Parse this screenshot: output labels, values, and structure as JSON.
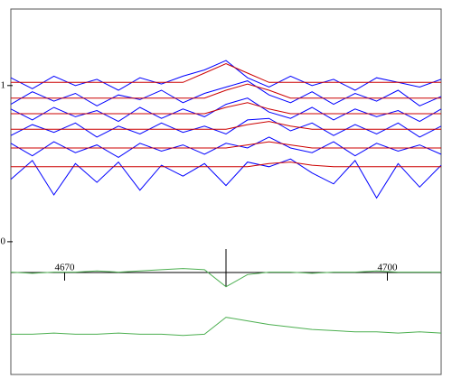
{
  "chart_data": [
    {
      "type": "line",
      "x": [
        4665,
        4667,
        4669,
        4671,
        4673,
        4675,
        4677,
        4679,
        4681,
        4683,
        4685,
        4687,
        4689,
        4691,
        4693,
        4695,
        4697,
        4699,
        4701,
        4703,
        4705
      ],
      "xlim": [
        4665,
        4705
      ],
      "ylim": [
        -0.07,
        1.49
      ],
      "yticks": [
        0,
        1
      ],
      "series": [
        {
          "color": "#0000ff",
          "values": [
            1.05,
            0.98,
            1.06,
            1.0,
            1.04,
            0.97,
            1.05,
            1.01,
            1.06,
            1.1,
            1.16,
            1.05,
            0.99,
            1.06,
            1.0,
            1.04,
            0.97,
            1.05,
            1.02,
            0.99,
            1.04
          ]
        },
        {
          "color": "#cc0000",
          "values": [
            1.02,
            1.02,
            1.02,
            1.02,
            1.02,
            1.02,
            1.02,
            1.02,
            1.02,
            1.08,
            1.14,
            1.08,
            1.02,
            1.02,
            1.02,
            1.02,
            1.02,
            1.02,
            1.02,
            1.02,
            1.02
          ]
        },
        {
          "color": "#0000ff",
          "values": [
            0.88,
            0.96,
            0.9,
            0.95,
            0.87,
            0.94,
            0.91,
            0.97,
            0.89,
            0.95,
            0.99,
            1.03,
            0.94,
            0.89,
            0.96,
            0.88,
            0.95,
            0.9,
            0.97,
            0.87,
            0.93
          ]
        },
        {
          "color": "#cc0000",
          "values": [
            0.92,
            0.92,
            0.92,
            0.92,
            0.92,
            0.92,
            0.92,
            0.92,
            0.92,
            0.92,
            0.97,
            1.01,
            0.97,
            0.92,
            0.92,
            0.92,
            0.92,
            0.92,
            0.92,
            0.92,
            0.92
          ]
        },
        {
          "color": "#0000ff",
          "values": [
            0.85,
            0.78,
            0.86,
            0.8,
            0.84,
            0.77,
            0.86,
            0.79,
            0.85,
            0.8,
            0.88,
            0.92,
            0.83,
            0.79,
            0.86,
            0.78,
            0.85,
            0.8,
            0.84,
            0.77,
            0.85
          ]
        },
        {
          "color": "#cc0000",
          "values": [
            0.82,
            0.82,
            0.82,
            0.82,
            0.82,
            0.82,
            0.82,
            0.82,
            0.82,
            0.82,
            0.86,
            0.89,
            0.85,
            0.82,
            0.82,
            0.82,
            0.82,
            0.82,
            0.82,
            0.82,
            0.82
          ]
        },
        {
          "color": "#0000ff",
          "values": [
            0.68,
            0.75,
            0.7,
            0.76,
            0.67,
            0.74,
            0.69,
            0.76,
            0.7,
            0.74,
            0.69,
            0.78,
            0.79,
            0.71,
            0.76,
            0.68,
            0.75,
            0.69,
            0.76,
            0.67,
            0.74
          ]
        },
        {
          "color": "#cc0000",
          "values": [
            0.72,
            0.72,
            0.72,
            0.72,
            0.72,
            0.72,
            0.72,
            0.72,
            0.72,
            0.72,
            0.72,
            0.75,
            0.77,
            0.74,
            0.72,
            0.72,
            0.72,
            0.72,
            0.72,
            0.72,
            0.72
          ]
        },
        {
          "color": "#0000ff",
          "values": [
            0.63,
            0.55,
            0.64,
            0.57,
            0.62,
            0.54,
            0.63,
            0.58,
            0.62,
            0.56,
            0.63,
            0.6,
            0.67,
            0.6,
            0.57,
            0.64,
            0.55,
            0.63,
            0.58,
            0.62,
            0.56
          ]
        },
        {
          "color": "#cc0000",
          "values": [
            0.6,
            0.6,
            0.6,
            0.6,
            0.6,
            0.6,
            0.6,
            0.6,
            0.6,
            0.6,
            0.6,
            0.62,
            0.64,
            0.62,
            0.6,
            0.6,
            0.6,
            0.6,
            0.6,
            0.6,
            0.6
          ]
        },
        {
          "color": "#0000ff",
          "values": [
            0.4,
            0.52,
            0.3,
            0.5,
            0.38,
            0.51,
            0.33,
            0.49,
            0.42,
            0.5,
            0.36,
            0.51,
            0.48,
            0.53,
            0.44,
            0.37,
            0.52,
            0.28,
            0.5,
            0.35,
            0.49
          ]
        },
        {
          "color": "#cc0000",
          "values": [
            0.48,
            0.48,
            0.48,
            0.48,
            0.48,
            0.48,
            0.48,
            0.48,
            0.48,
            0.48,
            0.48,
            0.48,
            0.5,
            0.51,
            0.49,
            0.48,
            0.48,
            0.48,
            0.48,
            0.48,
            0.48
          ]
        }
      ]
    },
    {
      "type": "line",
      "x": [
        4665,
        4667,
        4669,
        4671,
        4673,
        4675,
        4677,
        4679,
        4681,
        4683,
        4685,
        4687,
        4689,
        4691,
        4693,
        4695,
        4697,
        4699,
        4701,
        4703,
        4705
      ],
      "xlim": [
        4665,
        4705
      ],
      "xticks": [
        4670,
        4700
      ],
      "ylim": [
        0,
        1
      ],
      "series": [
        {
          "color": "#4caf50",
          "values": [
            0.84,
            0.83,
            0.84,
            0.84,
            0.85,
            0.84,
            0.85,
            0.86,
            0.87,
            0.86,
            0.72,
            0.82,
            0.84,
            0.84,
            0.83,
            0.84,
            0.84,
            0.85,
            0.84,
            0.84,
            0.84
          ]
        },
        {
          "color": "#4caf50",
          "values": [
            0.33,
            0.33,
            0.34,
            0.33,
            0.33,
            0.34,
            0.33,
            0.33,
            0.32,
            0.33,
            0.47,
            0.44,
            0.41,
            0.39,
            0.37,
            0.36,
            0.35,
            0.35,
            0.34,
            0.35,
            0.34
          ]
        }
      ]
    }
  ]
}
